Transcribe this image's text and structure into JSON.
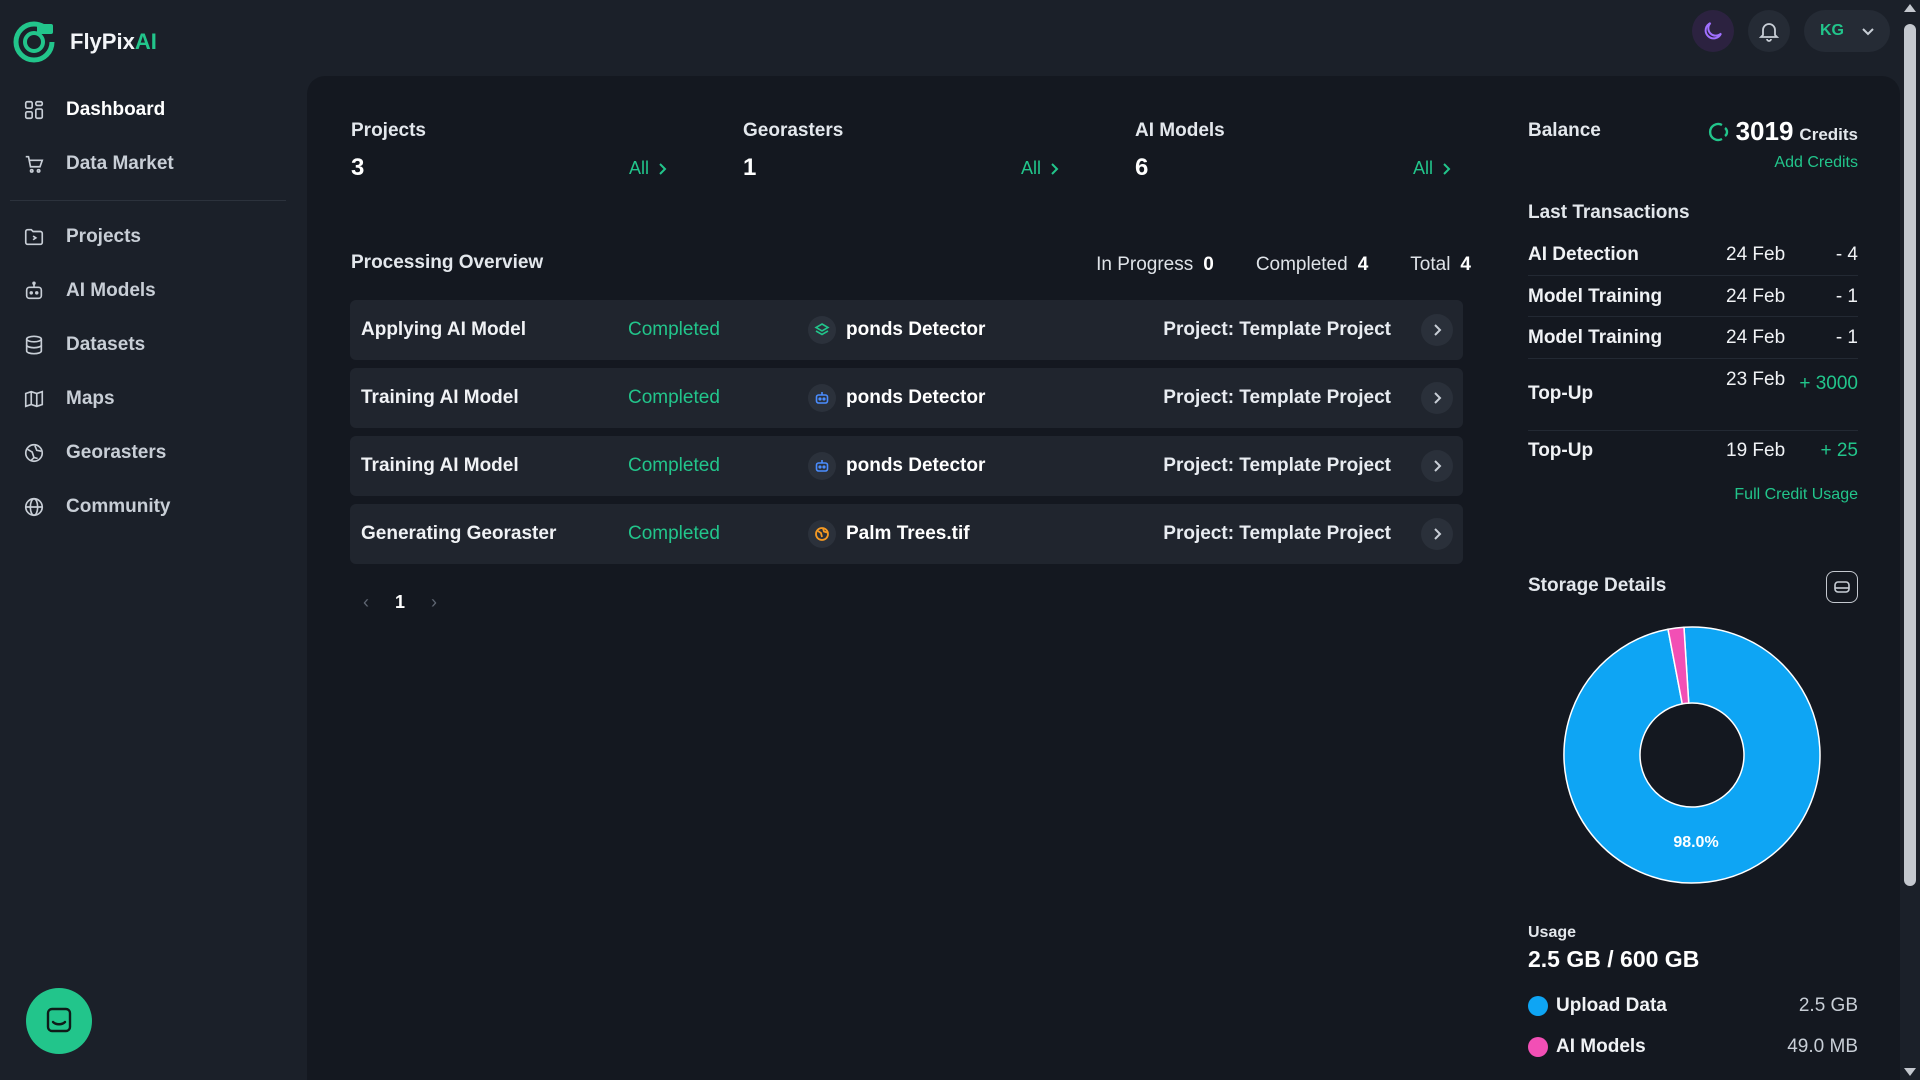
{
  "brand": {
    "name_main": "FlyPix",
    "name_accent": "AI"
  },
  "sidebar": {
    "primary": [
      {
        "label": "Dashboard",
        "icon": "dashboard-icon",
        "active": true
      },
      {
        "label": "Data Market",
        "icon": "cart-icon",
        "active": false
      }
    ],
    "secondary": [
      {
        "label": "Projects",
        "icon": "folder-icon"
      },
      {
        "label": "AI Models",
        "icon": "robot-icon"
      },
      {
        "label": "Datasets",
        "icon": "database-icon"
      },
      {
        "label": "Maps",
        "icon": "map-icon"
      },
      {
        "label": "Georasters",
        "icon": "globe-grid-icon"
      },
      {
        "label": "Community",
        "icon": "globe-icon"
      }
    ]
  },
  "topbar": {
    "user_initials": "KG"
  },
  "stats": [
    {
      "title": "Projects",
      "value": "3",
      "link": "All"
    },
    {
      "title": "Georasters",
      "value": "1",
      "link": "All"
    },
    {
      "title": "AI Models",
      "value": "6",
      "link": "All"
    }
  ],
  "processing": {
    "title": "Processing Overview",
    "in_progress_label": "In Progress",
    "in_progress": "0",
    "completed_label": "Completed",
    "completed": "4",
    "total_label": "Total",
    "total": "4",
    "rows": [
      {
        "task": "Applying AI Model",
        "status": "Completed",
        "item": "ponds Detector",
        "item_icon": "layers-icon",
        "project": "Project: Template Project"
      },
      {
        "task": "Training AI Model",
        "status": "Completed",
        "item": "ponds Detector",
        "item_icon": "robot-icon",
        "project": "Project: Template Project"
      },
      {
        "task": "Training AI Model",
        "status": "Completed",
        "item": "ponds Detector",
        "item_icon": "robot-icon",
        "project": "Project: Template Project"
      },
      {
        "task": "Generating Georaster",
        "status": "Completed",
        "item": "Palm Trees.tif",
        "item_icon": "globe-icon",
        "project": "Project: Template Project"
      }
    ],
    "page": "1"
  },
  "balance": {
    "title": "Balance",
    "value": "3019",
    "unit": "Credits",
    "add_label": "Add Credits",
    "transactions_title": "Last Transactions",
    "transactions": [
      {
        "type": "AI Detection",
        "date": "24 Feb",
        "amount": "- 4",
        "positive": false
      },
      {
        "type": "Model Training",
        "date": "24 Feb",
        "amount": "- 1",
        "positive": false
      },
      {
        "type": "Model Training",
        "date": "24 Feb",
        "amount": "- 1",
        "positive": false
      },
      {
        "type": "Top-Up",
        "date": "23 Feb",
        "amount": "+ 3000",
        "positive": true
      },
      {
        "type": "Top-Up",
        "date": "19 Feb",
        "amount": "+ 25",
        "positive": true
      }
    ],
    "full_usage_label": "Full Credit Usage"
  },
  "storage": {
    "title": "Storage Details",
    "usage_label": "Usage",
    "usage_value": "2.5 GB / 600 GB",
    "percent_label": "98.0%",
    "legend": [
      {
        "name": "Upload Data",
        "value": "2.5 GB",
        "color": "#0ea5f4"
      },
      {
        "name": "AI Models",
        "value": "49.0 MB",
        "color": "#f24fb5"
      }
    ]
  },
  "chart_data": {
    "type": "pie",
    "categories": [
      "Upload Data",
      "AI Models"
    ],
    "values": [
      98.0,
      2.0
    ],
    "colors": [
      "#0ea5f4",
      "#f24fb5"
    ],
    "labels": [
      "98.0%"
    ]
  }
}
